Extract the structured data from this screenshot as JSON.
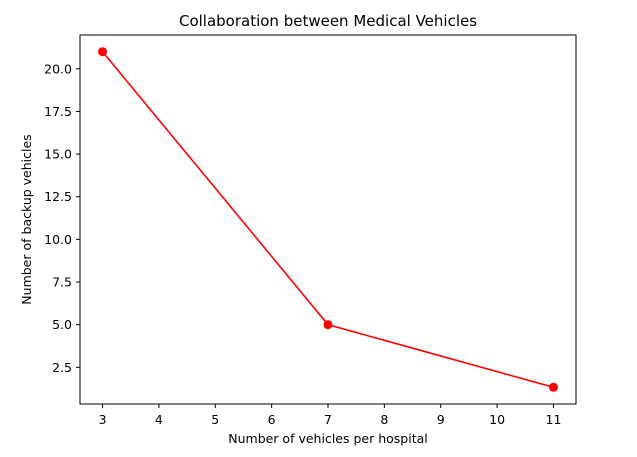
{
  "chart_data": {
    "type": "line",
    "title": "Collaboration between Medical Vehicles",
    "xlabel": "Number of vehicles per hospital",
    "ylabel": "Number of backup vehicles",
    "x": [
      3,
      7,
      11
    ],
    "series": [
      {
        "values": [
          21.0,
          5.0,
          1.33
        ],
        "color": "#ff0000",
        "marker": "circle"
      }
    ],
    "xlim": [
      2.6,
      11.4
    ],
    "ylim": [
      0.35,
      21.98
    ],
    "xticks": [
      3,
      4,
      5,
      6,
      7,
      8,
      9,
      10,
      11
    ],
    "yticks": [
      2.5,
      5.0,
      7.5,
      10.0,
      12.5,
      15.0,
      17.5,
      20.0
    ],
    "xtick_labels": [
      "3",
      "4",
      "5",
      "6",
      "7",
      "8",
      "9",
      "10",
      "11"
    ],
    "ytick_labels": [
      "2.5",
      "5.0",
      "7.5",
      "10.0",
      "12.5",
      "15.0",
      "17.5",
      "20.0"
    ],
    "grid": false,
    "legend": "none"
  }
}
